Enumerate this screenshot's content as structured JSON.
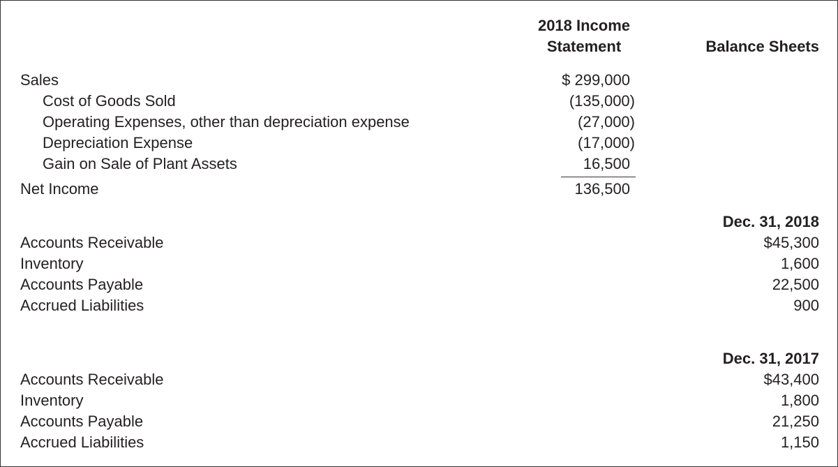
{
  "headers": {
    "income_line1": "2018 Income",
    "income_line2": "Statement",
    "balance": "Balance Sheets"
  },
  "income_statement": [
    {
      "label": "Sales",
      "value": "$ 299,000",
      "indent": false,
      "paren": false
    },
    {
      "label": "Cost of Goods Sold",
      "value": "(135,000)",
      "indent": true,
      "paren": true
    },
    {
      "label": "Operating Expenses, other than depreciation expense",
      "value": "(27,000)",
      "indent": true,
      "paren": true
    },
    {
      "label": "Depreciation Expense",
      "value": "(17,000)",
      "indent": true,
      "paren": true
    },
    {
      "label": "Gain on Sale of Plant Assets",
      "value": "16,500",
      "indent": true,
      "paren": false
    }
  ],
  "net_income": {
    "label": "Net Income",
    "value": "136,500"
  },
  "balance_sheets": [
    {
      "date": "Dec. 31, 2018",
      "rows": [
        {
          "label": "Accounts Receivable",
          "value": "$45,300"
        },
        {
          "label": "Inventory",
          "value": "1,600"
        },
        {
          "label": "Accounts Payable",
          "value": "22,500"
        },
        {
          "label": "Accrued Liabilities",
          "value": "900"
        }
      ]
    },
    {
      "date": "Dec. 31, 2017",
      "rows": [
        {
          "label": "Accounts Receivable",
          "value": "$43,400"
        },
        {
          "label": "Inventory",
          "value": "1,800"
        },
        {
          "label": "Accounts Payable",
          "value": "21,250"
        },
        {
          "label": "Accrued Liabilities",
          "value": "1,150"
        }
      ]
    }
  ]
}
